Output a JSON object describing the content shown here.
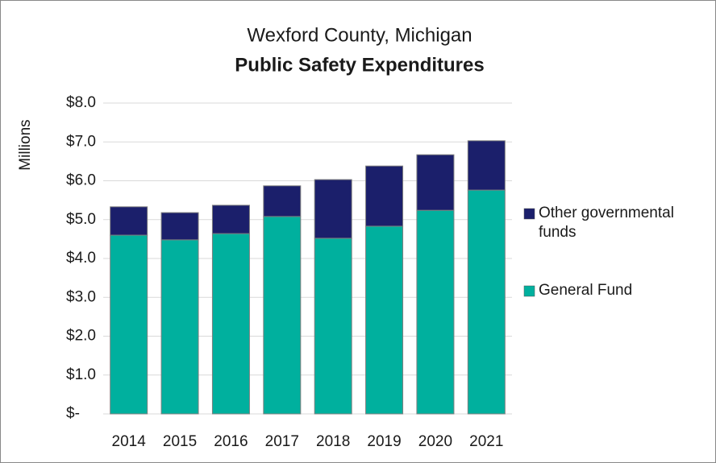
{
  "chart_data": {
    "type": "stacked_bar",
    "title": "Wexford County, Michigan",
    "subtitle": "Public Safety Expenditures",
    "y_label": "Millions",
    "categories": [
      "2014",
      "2015",
      "2016",
      "2017",
      "2018",
      "2019",
      "2020",
      "2021"
    ],
    "series": [
      {
        "name": "General Fund",
        "color": "#00b09e",
        "values": [
          4.6,
          4.48,
          4.64,
          5.08,
          4.52,
          4.83,
          5.24,
          5.76
        ]
      },
      {
        "name": "Other governmental funds",
        "color": "#1b1f6b",
        "values": [
          0.73,
          0.7,
          0.73,
          0.79,
          1.51,
          1.55,
          1.43,
          1.27
        ]
      }
    ],
    "ylim": [
      0,
      8
    ],
    "yticks": [
      {
        "value": 0,
        "label": "$-"
      },
      {
        "value": 1,
        "label": "$1.0"
      },
      {
        "value": 2,
        "label": "$2.0"
      },
      {
        "value": 3,
        "label": "$3.0"
      },
      {
        "value": 4,
        "label": "$4.0"
      },
      {
        "value": 5,
        "label": "$5.0"
      },
      {
        "value": 6,
        "label": "$6.0"
      },
      {
        "value": 7,
        "label": "$7.0"
      },
      {
        "value": 8,
        "label": "$8.0"
      }
    ],
    "grid": true,
    "legend": "right"
  }
}
